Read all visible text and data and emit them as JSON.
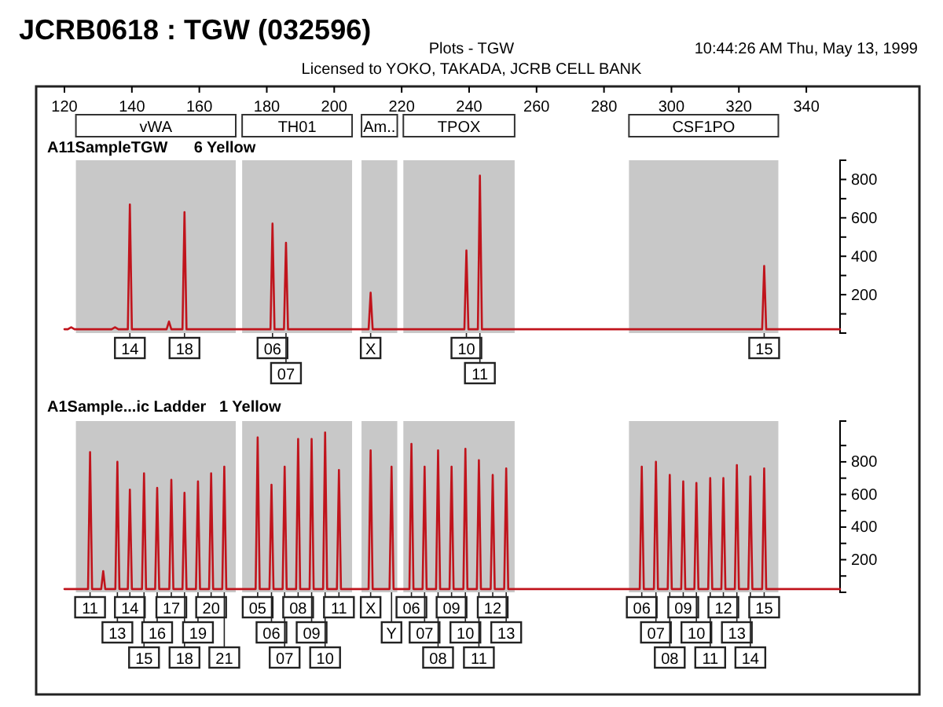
{
  "chart_data": [
    {
      "type": "line",
      "title": "JCRB0618 : TGW (032596)",
      "subtitle": "A11SampleTGW      6 Yellow",
      "xlim": [
        120,
        350
      ],
      "ylim": [
        0,
        900
      ],
      "xticks": [
        120,
        140,
        160,
        180,
        200,
        220,
        240,
        260,
        280,
        300,
        320,
        340
      ],
      "yticks": [
        {
          "value": 0,
          "label": null
        },
        {
          "value": 100,
          "label": null
        },
        200,
        {
          "value": 300,
          "label": null
        },
        400,
        {
          "value": 500,
          "label": null
        },
        600,
        {
          "value": 700,
          "label": null
        },
        800
      ],
      "marker": "none",
      "bands": [
        {
          "axis": "x",
          "from": 123.4,
          "to": 170.8,
          "label": "vWA",
          "color": "#c8c8c8"
        },
        {
          "axis": "x",
          "from": 172.7,
          "to": 205.3,
          "label": "TH01",
          "color": "#c8c8c8"
        },
        {
          "axis": "x",
          "from": 208.1,
          "to": 218.7,
          "label": "Am..",
          "color": "#c8c8c8"
        },
        {
          "axis": "x",
          "from": 220.5,
          "to": 253.5,
          "label": "TPOX",
          "color": "#c8c8c8"
        },
        {
          "axis": "x",
          "from": 287.4,
          "to": 331.7,
          "label": "CSF1PO",
          "color": "#c8c8c8"
        }
      ],
      "series": [
        {
          "color": "#c0141c",
          "x": [
            120,
            121,
            122,
            123,
            134,
            135,
            136,
            138.8,
            139.4,
            140,
            150.3,
            151,
            151.7,
            155,
            155.6,
            156.2,
            181.1,
            181.7,
            182.3,
            185.1,
            185.7,
            186.3,
            210.2,
            210.8,
            211.4,
            238.6,
            239.2,
            239.8,
            242.6,
            243.2,
            243.8,
            326.9,
            327.5,
            328.1,
            350
          ],
          "values": [
            20,
            20,
            30,
            20,
            20,
            30,
            20,
            20,
            670,
            20,
            20,
            60,
            20,
            20,
            630,
            20,
            20,
            570,
            20,
            20,
            470,
            20,
            20,
            210,
            20,
            20,
            430,
            20,
            20,
            820,
            20,
            20,
            350,
            20,
            20
          ]
        }
      ],
      "annotations": [
        "Plots - TGW",
        "Licensed to YOKO, TAKADA, JCRB CELL BANK",
        "10:44:26 AM Thu, May 13, 1999",
        {
          "text": "14",
          "x": 139.4
        },
        {
          "text": "18",
          "x": 155.6
        },
        {
          "text": "06",
          "x": 181.7
        },
        {
          "text": "07",
          "x": 185.7
        },
        {
          "text": "X",
          "x": 210.8
        },
        {
          "text": "10",
          "x": 239.2
        },
        {
          "text": "11",
          "x": 243.2
        },
        {
          "text": "15",
          "x": 327.5
        }
      ]
    },
    {
      "type": "line",
      "subtitle": "A1Sample...ic Ladder   1 Yellow",
      "tick_labels": "y",
      "xlim": [
        120,
        350
      ],
      "ylim": [
        0,
        1050
      ],
      "yticks": [
        {
          "value": 0,
          "label": null
        },
        {
          "value": 100,
          "label": null
        },
        200,
        {
          "value": 300,
          "label": null
        },
        400,
        {
          "value": 500,
          "label": null
        },
        600,
        {
          "value": 700,
          "label": null
        },
        800,
        {
          "value": 900,
          "label": null
        }
      ],
      "marker": "none",
      "bands": [
        {
          "axis": "x",
          "from": 123.4,
          "to": 170.8,
          "color": "#c8c8c8"
        },
        {
          "axis": "x",
          "from": 172.7,
          "to": 205.3,
          "color": "#c8c8c8"
        },
        {
          "axis": "x",
          "from": 208.1,
          "to": 218.7,
          "color": "#c8c8c8"
        },
        {
          "axis": "x",
          "from": 220.5,
          "to": 253.5,
          "color": "#c8c8c8"
        },
        {
          "axis": "x",
          "from": 287.4,
          "to": 331.7,
          "color": "#c8c8c8"
        }
      ],
      "series": [
        {
          "color": "#c0141c",
          "x": [
            120,
            127,
            127.6,
            128.2,
            130.9,
            131.5,
            132.1,
            135.1,
            135.7,
            136.3,
            138.8,
            139.4,
            140,
            143,
            143.6,
            144.2,
            146.9,
            147.5,
            148.1,
            151.1,
            151.7,
            152.3,
            155,
            155.6,
            156.2,
            159,
            159.6,
            160.2,
            162.9,
            163.5,
            164.1,
            166.8,
            167.4,
            168,
            176.7,
            177.3,
            177.9,
            180.8,
            181.4,
            182,
            184.7,
            185.3,
            185.9,
            188.7,
            189.3,
            189.9,
            192.7,
            193.3,
            193.9,
            196.7,
            197.3,
            197.9,
            200.8,
            201.4,
            202,
            210.2,
            210.8,
            211.4,
            216.4,
            217,
            217.6,
            222.3,
            222.9,
            223.5,
            226.2,
            226.8,
            227.4,
            230.2,
            230.8,
            231.4,
            234.2,
            234.8,
            235.4,
            238.3,
            238.9,
            239.5,
            242.3,
            242.9,
            243.5,
            246.4,
            247,
            247.6,
            250.4,
            251,
            251.6,
            290.6,
            291.2,
            291.8,
            294.8,
            295.4,
            296,
            298.9,
            299.5,
            300.1,
            302.9,
            303.5,
            304.1,
            306.8,
            307.4,
            308,
            310.9,
            311.5,
            312.1,
            314.8,
            315.4,
            316,
            318.8,
            319.4,
            320,
            322.8,
            323.4,
            324,
            326.9,
            327.5,
            328.1,
            350
          ],
          "values": [
            20,
            20,
            860,
            20,
            20,
            130,
            20,
            20,
            800,
            20,
            20,
            630,
            20,
            20,
            730,
            20,
            20,
            640,
            20,
            20,
            690,
            20,
            20,
            610,
            20,
            20,
            680,
            20,
            20,
            730,
            20,
            20,
            770,
            20,
            20,
            950,
            20,
            20,
            660,
            20,
            20,
            770,
            20,
            20,
            940,
            20,
            20,
            940,
            20,
            20,
            980,
            20,
            20,
            750,
            20,
            20,
            870,
            20,
            20,
            770,
            20,
            20,
            910,
            20,
            20,
            770,
            20,
            20,
            870,
            20,
            20,
            770,
            20,
            20,
            880,
            20,
            20,
            810,
            20,
            20,
            720,
            20,
            20,
            760,
            20,
            20,
            770,
            20,
            20,
            800,
            20,
            20,
            720,
            20,
            20,
            680,
            20,
            20,
            670,
            20,
            20,
            700,
            20,
            20,
            700,
            20,
            20,
            780,
            20,
            20,
            710,
            20,
            20,
            760,
            20,
            20
          ]
        }
      ],
      "annotations": [
        {
          "text": "11",
          "x": 127.6
        },
        {
          "text": "13",
          "x": 135.7
        },
        {
          "text": "14",
          "x": 139.4
        },
        {
          "text": "15",
          "x": 143.6
        },
        {
          "text": "16",
          "x": 147.5
        },
        {
          "text": "17",
          "x": 151.7
        },
        {
          "text": "18",
          "x": 155.6
        },
        {
          "text": "19",
          "x": 159.6
        },
        {
          "text": "20",
          "x": 163.5
        },
        {
          "text": "21",
          "x": 167.4
        },
        {
          "text": "05",
          "x": 177.3
        },
        {
          "text": "06",
          "x": 181.4
        },
        {
          "text": "07",
          "x": 185.3
        },
        {
          "text": "08",
          "x": 189.3
        },
        {
          "text": "09",
          "x": 193.3
        },
        {
          "text": "10",
          "x": 197.3
        },
        {
          "text": "11",
          "x": 201.4
        },
        {
          "text": "X",
          "x": 210.8
        },
        {
          "text": "Y",
          "x": 217
        },
        {
          "text": "06",
          "x": 222.9
        },
        {
          "text": "07",
          "x": 226.8
        },
        {
          "text": "08",
          "x": 230.8
        },
        {
          "text": "09",
          "x": 234.8
        },
        {
          "text": "10",
          "x": 238.9
        },
        {
          "text": "11",
          "x": 242.9
        },
        {
          "text": "12",
          "x": 247
        },
        {
          "text": "13",
          "x": 251
        },
        {
          "text": "06",
          "x": 291.2
        },
        {
          "text": "07",
          "x": 295.4
        },
        {
          "text": "08",
          "x": 299.5
        },
        {
          "text": "09",
          "x": 303.5
        },
        {
          "text": "10",
          "x": 307.4
        },
        {
          "text": "11",
          "x": 311.5
        },
        {
          "text": "12",
          "x": 315.4
        },
        {
          "text": "13",
          "x": 319.4
        },
        {
          "text": "14",
          "x": 323.4
        },
        {
          "text": "15",
          "x": 327.5
        }
      ]
    }
  ]
}
